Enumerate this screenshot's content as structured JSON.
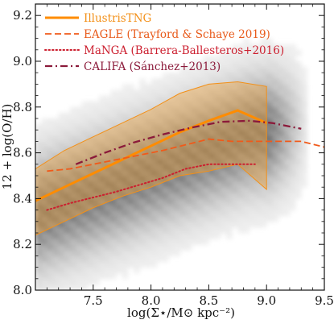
{
  "chart_data": {
    "type": "line",
    "title": "",
    "xlabel": "log(Σ⋆/M⊙ kpc⁻²)",
    "ylabel": "12 + log(O/H)",
    "xlim": [
      7.0,
      9.5
    ],
    "ylim": [
      8.0,
      9.25
    ],
    "x_ticks": [
      7.5,
      8.0,
      8.5,
      9.0,
      9.5
    ],
    "x_tick_labels": [
      "7.5",
      "8.0",
      "8.5",
      "9.0",
      "9.5"
    ],
    "y_ticks": [
      8.0,
      8.2,
      8.4,
      8.6,
      8.8,
      9.0,
      9.2
    ],
    "y_tick_labels": [
      "8.0",
      "8.2",
      "8.4",
      "8.6",
      "8.8",
      "9.0",
      "9.2"
    ],
    "grid": false,
    "legend_position": "top-left",
    "background_2d_histogram": "grey density of simulated spaxels",
    "series": [
      {
        "name": "IllustrisTNG",
        "style": "solid",
        "color": "#ff8c00",
        "x": [
          7.0,
          7.25,
          7.5,
          7.75,
          8.0,
          8.25,
          8.5,
          8.75,
          9.0
        ],
        "y": [
          8.39,
          8.45,
          8.51,
          8.57,
          8.63,
          8.69,
          8.74,
          8.785,
          8.73
        ],
        "band_upper": [
          8.53,
          8.61,
          8.67,
          8.73,
          8.79,
          8.86,
          8.9,
          8.91,
          8.89
        ],
        "band_lower": [
          8.24,
          8.3,
          8.36,
          8.41,
          8.45,
          8.5,
          8.52,
          8.55,
          8.44
        ]
      },
      {
        "name": "EAGLE (Trayford & Schaye 2019)",
        "style": "dashed",
        "color": "#f05a1a",
        "x": [
          7.1,
          7.3,
          7.5,
          7.7,
          7.9,
          8.1,
          8.3,
          8.5,
          8.7,
          8.9,
          9.1,
          9.3,
          9.5
        ],
        "y": [
          8.52,
          8.53,
          8.55,
          8.57,
          8.59,
          8.61,
          8.635,
          8.66,
          8.65,
          8.65,
          8.65,
          8.65,
          8.625
        ]
      },
      {
        "name": "MaNGA (Barrera-Ballesteros+2016)",
        "style": "dotted",
        "color": "#cc1f2f",
        "x": [
          7.1,
          7.3,
          7.5,
          7.7,
          7.9,
          8.1,
          8.3,
          8.5,
          8.7,
          8.9
        ],
        "y": [
          8.35,
          8.38,
          8.405,
          8.43,
          8.46,
          8.49,
          8.53,
          8.55,
          8.55,
          8.55
        ]
      },
      {
        "name": "CALIFA (Sánchez+2013)",
        "style": "dashdot",
        "color": "#8b1a3a",
        "x": [
          7.35,
          7.6,
          7.85,
          8.1,
          8.35,
          8.6,
          8.85,
          9.05,
          9.3
        ],
        "y": [
          8.55,
          8.6,
          8.645,
          8.68,
          8.71,
          8.735,
          8.74,
          8.73,
          8.705
        ]
      }
    ]
  }
}
